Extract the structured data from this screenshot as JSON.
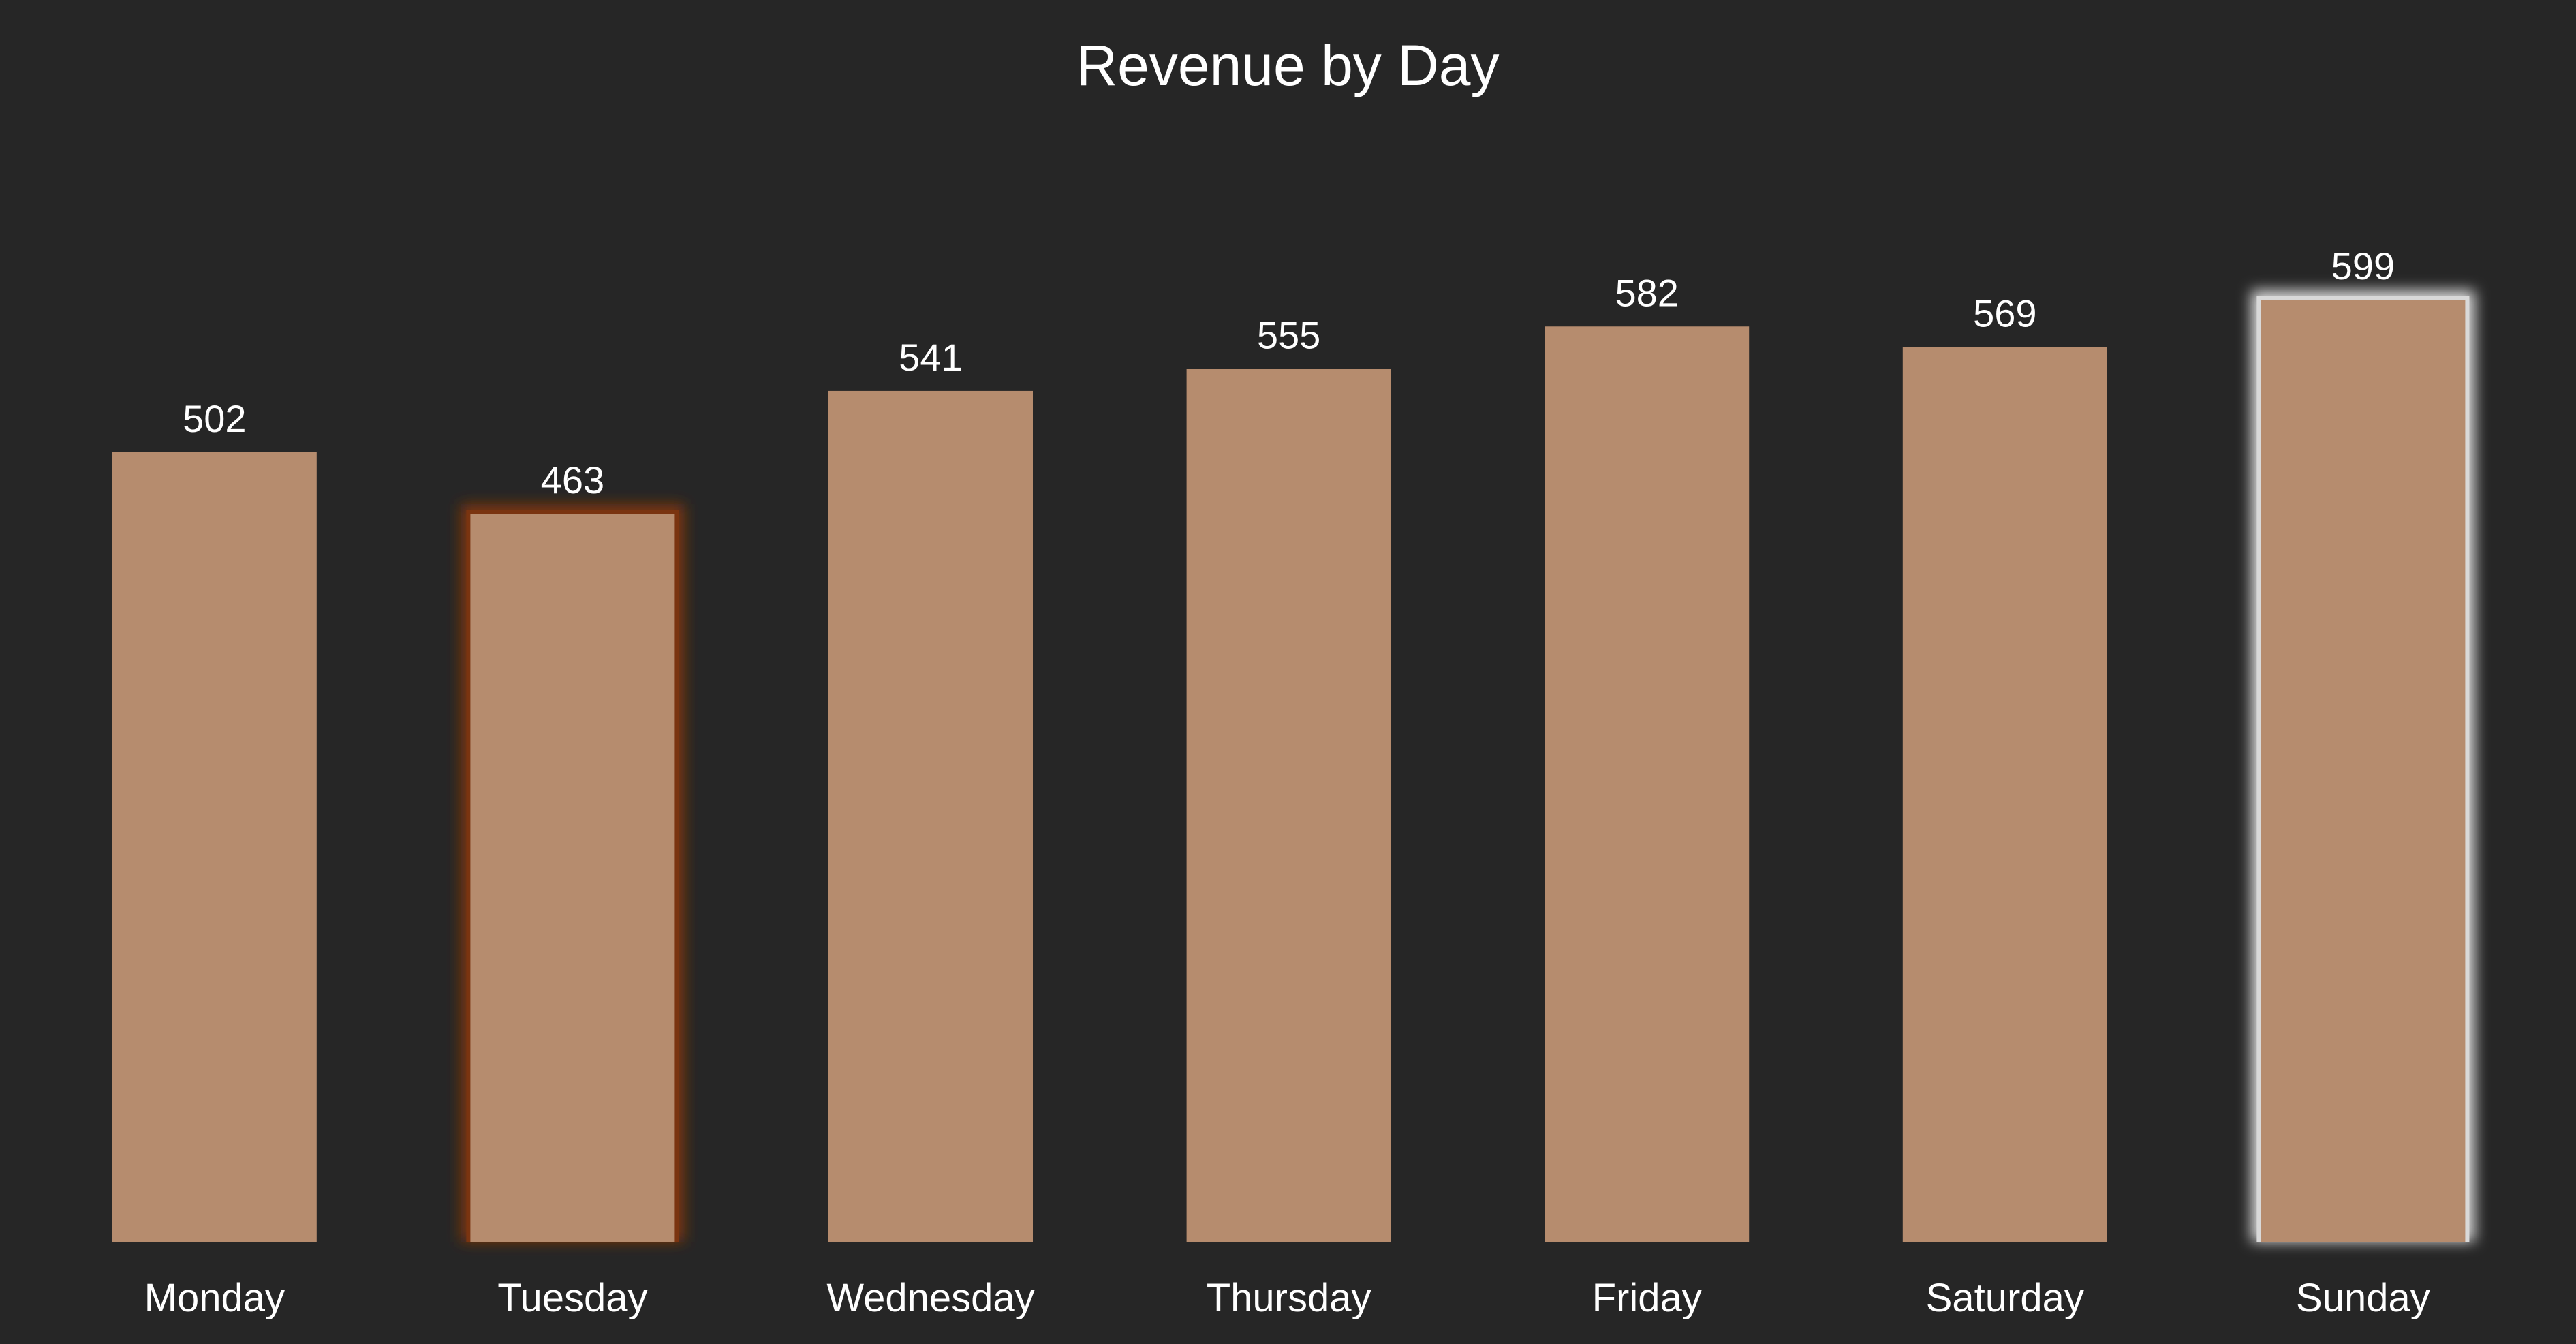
{
  "chart_data": {
    "type": "bar",
    "title": "Revenue by Day",
    "xlabel": "",
    "ylabel": "",
    "categories": [
      "Monday",
      "Tuesday",
      "Wednesday",
      "Thursday",
      "Friday",
      "Saturday",
      "Sunday"
    ],
    "values": [
      502,
      463,
      541,
      555,
      582,
      569,
      599
    ],
    "ylim": [
      0,
      599
    ],
    "grid": false,
    "legend": "none",
    "highlights": {
      "min": {
        "category": "Tuesday",
        "glow_color": "#7a3410"
      },
      "max": {
        "category": "Sunday",
        "glow_color": "#d9d9d9"
      }
    }
  },
  "colors": {
    "background": "#262626",
    "bar": "#b68c6e",
    "text": "#ffffff"
  }
}
